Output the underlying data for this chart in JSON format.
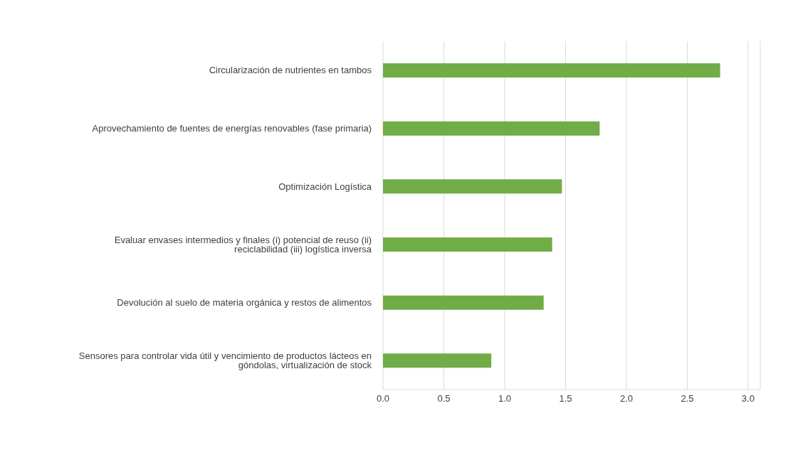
{
  "chart_data": {
    "type": "bar",
    "orientation": "horizontal",
    "categories": [
      "Circularización de nutrientes en tambos",
      "Aprovechamiento de fuentes de energías renovables (fase primaria)",
      "Optimización Logística",
      "Evaluar envases intermedios y finales (i) potencial de reuso (ii) reciclabilidad (iii) logística inversa",
      "Devolución al suelo de materia orgánica y restos de alimentos",
      "Sensores para controlar vida útil y vencimiento de productos lácteos en góndolas, virtualización de stock"
    ],
    "values": [
      2.77,
      1.78,
      1.47,
      1.39,
      1.32,
      0.89
    ],
    "color": "#70ad47",
    "xlim": [
      0,
      3.1
    ],
    "xticks": [
      {
        "value": 0,
        "label": "0.0"
      },
      {
        "value": 0.5,
        "label": "0.5"
      },
      {
        "value": 1,
        "label": "1.0"
      },
      {
        "value": 1.5,
        "label": "1.5"
      },
      {
        "value": 2,
        "label": "2.0"
      },
      {
        "value": 2.5,
        "label": "2.5"
      },
      {
        "value": 3,
        "label": "3.0"
      }
    ],
    "grid": "x",
    "legend": false
  }
}
